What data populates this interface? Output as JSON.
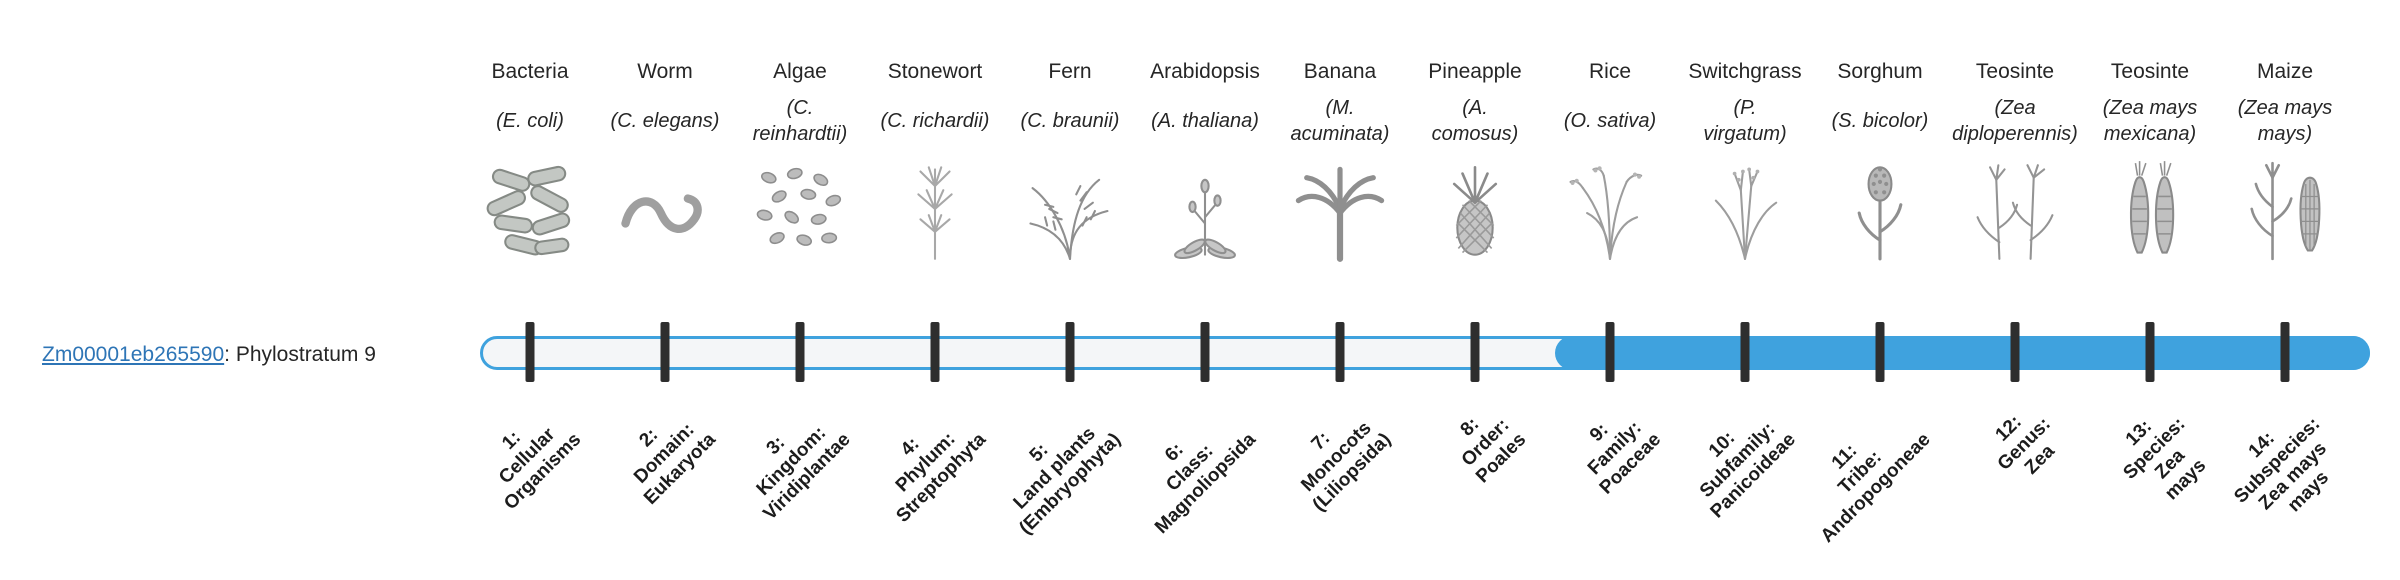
{
  "gene": {
    "id": "Zm00001eb265590",
    "suffix": ": Phylostratum 9",
    "phylostratum": 9
  },
  "total_strata": 14,
  "colors": {
    "bar_blue": "#3fa2de",
    "bar_track": "#f4f6f8",
    "tick": "#2e2e2e",
    "link_blue": "#2e75b6",
    "text": "#262626"
  },
  "organisms": [
    {
      "common": "Bacteria",
      "scientific_lines": [
        "(E. coli)"
      ],
      "icon": "bacteria",
      "stratum_lines": [
        "1:",
        "Cellular",
        "Organisms"
      ]
    },
    {
      "common": "Worm",
      "scientific_lines": [
        "(C. elegans)"
      ],
      "icon": "worm",
      "stratum_lines": [
        "2:",
        "Domain:",
        "Eukaryota"
      ]
    },
    {
      "common": "Algae",
      "scientific_lines": [
        "(C.",
        "reinhardtii)"
      ],
      "icon": "algae",
      "stratum_lines": [
        "3:",
        "Kingdom:",
        "Viridiplantae"
      ]
    },
    {
      "common": "Stonewort",
      "scientific_lines": [
        "(C. richardii)"
      ],
      "icon": "stonewort",
      "stratum_lines": [
        "4:",
        "Phylum:",
        "Streptophyta"
      ]
    },
    {
      "common": "Fern",
      "scientific_lines": [
        "(C. braunii)"
      ],
      "icon": "fern",
      "stratum_lines": [
        "5:",
        "Land plants",
        "(Embryophyta)"
      ]
    },
    {
      "common": "Arabidopsis",
      "scientific_lines": [
        "(A. thaliana)"
      ],
      "icon": "arabidopsis",
      "stratum_lines": [
        "6:",
        "Class:",
        "Magnoliopsida"
      ]
    },
    {
      "common": "Banana",
      "scientific_lines": [
        "(M.",
        "acuminata)"
      ],
      "icon": "banana",
      "stratum_lines": [
        "7:",
        "Monocots",
        "(Liliopsida)"
      ]
    },
    {
      "common": "Pineapple",
      "scientific_lines": [
        "(A.",
        "comosus)"
      ],
      "icon": "pineapple",
      "stratum_lines": [
        "8:",
        "Order:",
        "Poales"
      ]
    },
    {
      "common": "Rice",
      "scientific_lines": [
        "(O. sativa)"
      ],
      "icon": "rice",
      "stratum_lines": [
        "9:",
        "Family:",
        "Poaceae"
      ]
    },
    {
      "common": "Switchgrass",
      "scientific_lines": [
        "(P.",
        "virgatum)"
      ],
      "icon": "switchgrass",
      "stratum_lines": [
        "10:",
        "Subfamily:",
        "Panicoideae"
      ]
    },
    {
      "common": "Sorghum",
      "scientific_lines": [
        "(S. bicolor)"
      ],
      "icon": "sorghum",
      "stratum_lines": [
        "11:",
        "Tribe:",
        "Andropogoneae"
      ]
    },
    {
      "common": "Teosinte",
      "scientific_lines": [
        "(Zea",
        "diploperennis)"
      ],
      "icon": "teosinte-diplo",
      "stratum_lines": [
        "12:",
        "Genus:",
        "Zea"
      ]
    },
    {
      "common": "Teosinte",
      "scientific_lines": [
        "(Zea mays",
        "mexicana)"
      ],
      "icon": "teosinte-mex",
      "stratum_lines": [
        "13:",
        "Species:",
        "Zea",
        "mays"
      ]
    },
    {
      "common": "Maize",
      "scientific_lines": [
        "(Zea mays",
        "mays)"
      ],
      "icon": "maize",
      "stratum_lines": [
        "14:",
        "Subspecies:",
        "Zea mays",
        "mays"
      ]
    }
  ]
}
